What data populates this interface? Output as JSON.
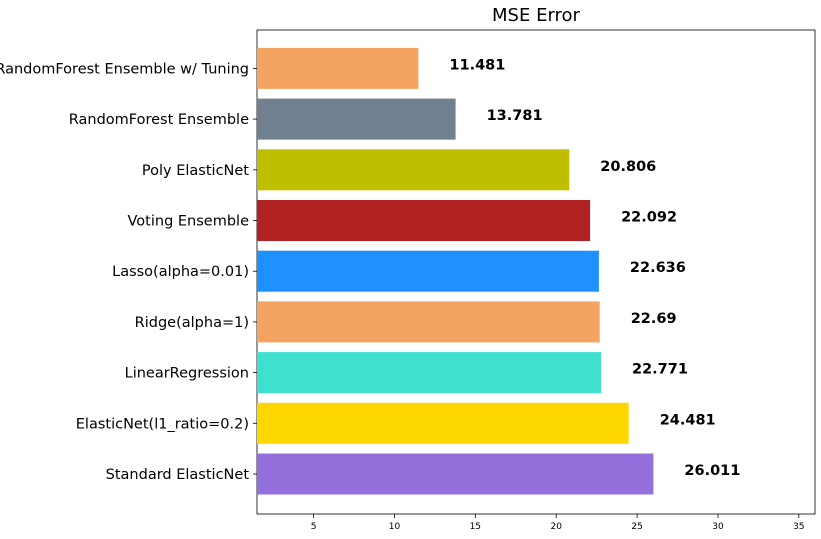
{
  "chart_data": {
    "type": "bar",
    "orientation": "horizontal",
    "title": "MSE Error",
    "xlabel": "",
    "ylabel": "",
    "xlim": [
      1.5,
      36.0
    ],
    "xticks": [
      5,
      10,
      15,
      20,
      25,
      30,
      35
    ],
    "grid": false,
    "categories": [
      "Standard ElasticNet",
      "ElasticNet(l1_ratio=0.2)",
      "LinearRegression",
      "Ridge(alpha=1)",
      "Lasso(alpha=0.01)",
      "Voting Ensemble",
      "Poly ElasticNet",
      "RandomForest Ensemble",
      "RandomForest Ensemble w/ Tuning"
    ],
    "values": [
      26.011,
      24.481,
      22.771,
      22.69,
      22.636,
      22.092,
      20.806,
      13.781,
      11.481
    ],
    "value_labels": [
      "26.011",
      "24.481",
      "22.771",
      "22.69",
      "22.636",
      "22.092",
      "20.806",
      "13.781",
      "11.481"
    ],
    "colors": [
      "#9370db",
      "#ffd700",
      "#40e0d0",
      "#f4a460",
      "#1e90ff",
      "#b22222",
      "#bfbf00",
      "#708090",
      "#f4a460"
    ]
  }
}
